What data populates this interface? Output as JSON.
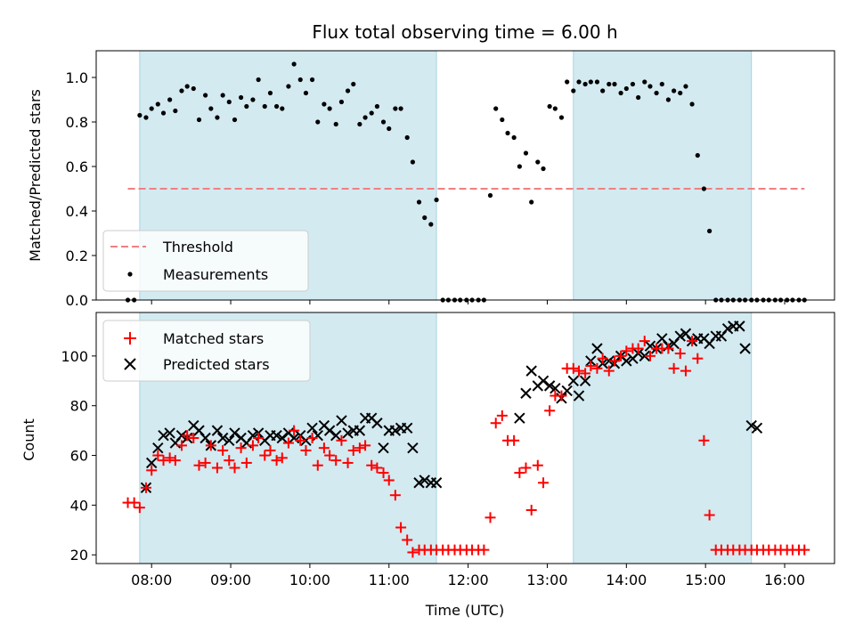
{
  "chart_data": [
    {
      "type": "scatter",
      "title": "Flux total observing time = 6.00 h",
      "xlabel": "",
      "ylabel": "Matched/Predicted stars",
      "xlim": [
        7.3,
        16.63
      ],
      "ylim": [
        0.0,
        1.12
      ],
      "yticks": [
        0.0,
        0.2,
        0.4,
        0.6,
        0.8,
        1.0
      ],
      "ytick_labels": [
        "0.0",
        "0.2",
        "0.4",
        "0.6",
        "0.8",
        "1.0"
      ],
      "shaded_regions": [
        [
          7.85,
          11.6
        ],
        [
          13.33,
          15.58
        ]
      ],
      "shade_color": "#d3eaf1",
      "threshold": {
        "name": "Threshold",
        "y": 0.5,
        "x_range": [
          7.7,
          16.25
        ],
        "color": "#f08080"
      },
      "legend": {
        "position": "lower-left",
        "entries": [
          "Threshold",
          "Measurements"
        ]
      },
      "series": [
        {
          "name": "Measurements",
          "color": "#000000",
          "x": [
            7.7,
            7.78,
            7.85,
            7.93,
            8.0,
            8.08,
            8.15,
            8.23,
            8.3,
            8.38,
            8.45,
            8.53,
            8.6,
            8.68,
            8.75,
            8.83,
            8.9,
            8.98,
            9.05,
            9.13,
            9.2,
            9.28,
            9.35,
            9.43,
            9.5,
            9.58,
            9.65,
            9.73,
            9.8,
            9.88,
            9.95,
            10.03,
            10.1,
            10.18,
            10.25,
            10.33,
            10.4,
            10.48,
            10.55,
            10.63,
            10.7,
            10.78,
            10.85,
            10.93,
            11.0,
            11.08,
            11.15,
            11.23,
            11.3,
            11.38,
            11.45,
            11.53,
            11.6,
            11.68,
            11.75,
            11.83,
            11.9,
            11.98,
            12.05,
            12.13,
            12.2,
            12.28,
            12.35,
            12.43,
            12.5,
            12.58,
            12.65,
            12.73,
            12.8,
            12.88,
            12.95,
            13.03,
            13.1,
            13.18,
            13.25,
            13.33,
            13.4,
            13.48,
            13.55,
            13.63,
            13.7,
            13.78,
            13.85,
            13.93,
            14.0,
            14.08,
            14.15,
            14.23,
            14.3,
            14.38,
            14.45,
            14.53,
            14.6,
            14.68,
            14.75,
            14.83,
            14.9,
            14.98,
            15.05,
            15.13,
            15.2,
            15.28,
            15.35,
            15.43,
            15.5,
            15.58,
            15.65,
            15.73,
            15.8,
            15.88,
            15.95,
            16.03,
            16.1,
            16.18,
            16.25
          ],
          "y": [
            0.0,
            0.0,
            0.83,
            0.82,
            0.86,
            0.88,
            0.84,
            0.9,
            0.85,
            0.94,
            0.96,
            0.95,
            0.81,
            0.92,
            0.86,
            0.82,
            0.92,
            0.89,
            0.81,
            0.91,
            0.87,
            0.9,
            0.99,
            0.87,
            0.93,
            0.87,
            0.86,
            0.96,
            1.06,
            0.99,
            0.93,
            0.99,
            0.8,
            0.88,
            0.86,
            0.79,
            0.89,
            0.94,
            0.97,
            0.79,
            0.82,
            0.84,
            0.87,
            0.8,
            0.77,
            0.86,
            0.86,
            0.73,
            0.62,
            0.44,
            0.37,
            0.34,
            0.45,
            0.0,
            0.0,
            0.0,
            0.0,
            0.0,
            0.0,
            0.0,
            0.0,
            0.47,
            0.86,
            0.81,
            0.75,
            0.73,
            0.6,
            0.66,
            0.44,
            0.62,
            0.59,
            0.87,
            0.86,
            0.82,
            0.98,
            0.94,
            0.98,
            0.97,
            0.98,
            0.98,
            0.94,
            0.97,
            0.97,
            0.93,
            0.95,
            0.97,
            0.91,
            0.98,
            0.96,
            0.93,
            0.97,
            0.9,
            0.94,
            0.93,
            0.96,
            0.88,
            0.65,
            0.5,
            0.31,
            0.0,
            0.0,
            0.0,
            0.0,
            0.0,
            0.0,
            0.0,
            0.0,
            0.0,
            0.0,
            0.0,
            0.0,
            0.0,
            0.0,
            0.0,
            0.0
          ]
        }
      ]
    },
    {
      "type": "scatter",
      "title": "",
      "xlabel": "Time (UTC)",
      "ylabel": "Count",
      "xlim": [
        7.3,
        16.63
      ],
      "ylim": [
        16.5,
        117.5
      ],
      "xticks": [
        8,
        9,
        10,
        11,
        12,
        13,
        14,
        15,
        16
      ],
      "xtick_labels": [
        "08:00",
        "09:00",
        "10:00",
        "11:00",
        "12:00",
        "13:00",
        "14:00",
        "15:00",
        "16:00"
      ],
      "yticks": [
        20,
        40,
        60,
        80,
        100
      ],
      "ytick_labels": [
        "20",
        "40",
        "60",
        "80",
        "100"
      ],
      "shaded_regions": [
        [
          7.85,
          11.6
        ],
        [
          13.33,
          15.58
        ]
      ],
      "shade_color": "#d3eaf1",
      "legend": {
        "position": "top-left",
        "entries": [
          "Matched stars",
          "Predicted stars"
        ]
      },
      "series": [
        {
          "name": "Matched stars",
          "marker": "plus",
          "color": "#ff0000",
          "x": [
            7.7,
            7.78,
            7.85,
            7.93,
            8.0,
            8.08,
            8.15,
            8.23,
            8.3,
            8.38,
            8.45,
            8.53,
            8.6,
            8.68,
            8.75,
            8.83,
            8.9,
            8.98,
            9.05,
            9.13,
            9.2,
            9.28,
            9.35,
            9.43,
            9.5,
            9.58,
            9.65,
            9.73,
            9.8,
            9.88,
            9.95,
            10.03,
            10.1,
            10.18,
            10.25,
            10.33,
            10.4,
            10.48,
            10.55,
            10.63,
            10.7,
            10.78,
            10.85,
            10.93,
            11.0,
            11.08,
            11.15,
            11.23,
            11.3,
            11.38,
            11.45,
            11.53,
            11.6,
            11.68,
            11.75,
            11.83,
            11.9,
            11.98,
            12.05,
            12.13,
            12.2,
            12.28,
            12.35,
            12.43,
            12.5,
            12.58,
            12.65,
            12.73,
            12.8,
            12.88,
            12.95,
            13.03,
            13.1,
            13.18,
            13.25,
            13.33,
            13.4,
            13.48,
            13.55,
            13.63,
            13.7,
            13.78,
            13.85,
            13.93,
            14.0,
            14.08,
            14.15,
            14.23,
            14.3,
            14.38,
            14.45,
            14.53,
            14.6,
            14.68,
            14.75,
            14.83,
            14.9,
            14.98,
            15.05,
            15.13,
            15.2,
            15.28,
            15.35,
            15.43,
            15.5,
            15.58,
            15.65,
            15.73,
            15.8,
            15.88,
            15.95,
            16.03,
            16.1,
            16.18,
            16.25
          ],
          "y": [
            41,
            41,
            39,
            47,
            54,
            60,
            58,
            59,
            58,
            64,
            68,
            67,
            56,
            57,
            64,
            55,
            62,
            58,
            55,
            63,
            57,
            64,
            67,
            60,
            62,
            58,
            59,
            65,
            70,
            66,
            62,
            67,
            56,
            63,
            60,
            58,
            66,
            57,
            62,
            63,
            64,
            56,
            55,
            53,
            50,
            44,
            31,
            26,
            21,
            22,
            22,
            22,
            22,
            22,
            22,
            22,
            22,
            22,
            22,
            22,
            22,
            35,
            73,
            76,
            66,
            66,
            53,
            55,
            38,
            56,
            49,
            78,
            84,
            84,
            95,
            95,
            94,
            93,
            96,
            95,
            99,
            94,
            98,
            100,
            102,
            103,
            103,
            106,
            100,
            103,
            103,
            103,
            95,
            101,
            94,
            106,
            99,
            66,
            36,
            22,
            22,
            22,
            22,
            22,
            22,
            22,
            22,
            22,
            22,
            22,
            22,
            22,
            22,
            22,
            22
          ]
        },
        {
          "name": "Predicted stars",
          "marker": "x",
          "color": "#000000",
          "x": [
            7.93,
            8.0,
            8.08,
            8.15,
            8.23,
            8.3,
            8.38,
            8.45,
            8.53,
            8.6,
            8.68,
            8.75,
            8.83,
            8.9,
            8.98,
            9.05,
            9.13,
            9.2,
            9.28,
            9.35,
            9.43,
            9.5,
            9.58,
            9.65,
            9.73,
            9.8,
            9.88,
            9.95,
            10.03,
            10.1,
            10.18,
            10.25,
            10.33,
            10.4,
            10.48,
            10.55,
            10.63,
            10.7,
            10.78,
            10.85,
            10.93,
            11.0,
            11.08,
            11.15,
            11.23,
            11.3,
            11.38,
            11.45,
            11.53,
            11.6,
            12.65,
            12.73,
            12.8,
            12.88,
            12.95,
            13.03,
            13.1,
            13.18,
            13.25,
            13.33,
            13.4,
            13.48,
            13.55,
            13.63,
            13.7,
            13.78,
            13.85,
            13.93,
            14.0,
            14.08,
            14.15,
            14.23,
            14.3,
            14.38,
            14.45,
            14.53,
            14.6,
            14.68,
            14.75,
            14.83,
            14.9,
            14.98,
            15.05,
            15.13,
            15.2,
            15.28,
            15.35,
            15.43,
            15.5,
            15.58,
            15.65
          ],
          "y": [
            47,
            57,
            63,
            68,
            69,
            65,
            68,
            67,
            72,
            70,
            67,
            64,
            70,
            67,
            66,
            69,
            67,
            65,
            68,
            69,
            66,
            68,
            68,
            67,
            69,
            67,
            68,
            66,
            71,
            68,
            72,
            70,
            68,
            74,
            69,
            70,
            70,
            75,
            75,
            73,
            63,
            70,
            70,
            71,
            71,
            63,
            49,
            50,
            49,
            49,
            75,
            85,
            94,
            88,
            90,
            88,
            87,
            83,
            86,
            90,
            84,
            90,
            98,
            103,
            97,
            98,
            97,
            100,
            98,
            99,
            101,
            100,
            104,
            103,
            107,
            104,
            105,
            108,
            109,
            106,
            107,
            107,
            105,
            108,
            108,
            111,
            112,
            112,
            103,
            72,
            71
          ]
        }
      ]
    }
  ]
}
